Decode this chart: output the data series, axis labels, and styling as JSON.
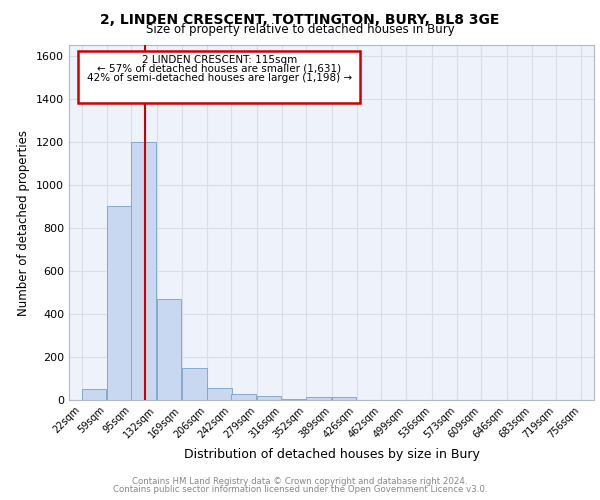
{
  "title1": "2, LINDEN CRESCENT, TOTTINGTON, BURY, BL8 3GE",
  "title2": "Size of property relative to detached houses in Bury",
  "xlabel": "Distribution of detached houses by size in Bury",
  "ylabel": "Number of detached properties",
  "footer1": "Contains HM Land Registry data © Crown copyright and database right 2024.",
  "footer2": "Contains public sector information licensed under the Open Government Licence v3.0.",
  "bins": [
    22,
    59,
    95,
    132,
    169,
    206,
    242,
    279,
    316,
    352,
    389,
    426,
    462,
    499,
    536,
    573,
    609,
    646,
    683,
    719,
    756
  ],
  "counts": [
    50,
    900,
    1200,
    470,
    150,
    55,
    30,
    20,
    5,
    15,
    15,
    0,
    0,
    0,
    0,
    0,
    0,
    0,
    0,
    0
  ],
  "bar_color": "#c8d8f0",
  "bar_edge_color": "#7aA0c8",
  "property_size": 115,
  "red_line_color": "#cc0000",
  "annotation_line1": "2 LINDEN CRESCENT: 115sqm",
  "annotation_line2": "← 57% of detached houses are smaller (1,631)",
  "annotation_line3": "42% of semi-detached houses are larger (1,198) →",
  "annotation_box_color": "#cc0000",
  "ylim": [
    0,
    1650
  ],
  "yticks": [
    0,
    200,
    400,
    600,
    800,
    1000,
    1200,
    1400,
    1600
  ],
  "background_color": "#eef2fa",
  "grid_color": "#d8dde8",
  "tick_labels": [
    "22sqm",
    "59sqm",
    "95sqm",
    "132sqm",
    "169sqm",
    "206sqm",
    "242sqm",
    "279sqm",
    "316sqm",
    "352sqm",
    "389sqm",
    "426sqm",
    "462sqm",
    "499sqm",
    "536sqm",
    "573sqm",
    "609sqm",
    "646sqm",
    "683sqm",
    "719sqm",
    "756sqm"
  ]
}
